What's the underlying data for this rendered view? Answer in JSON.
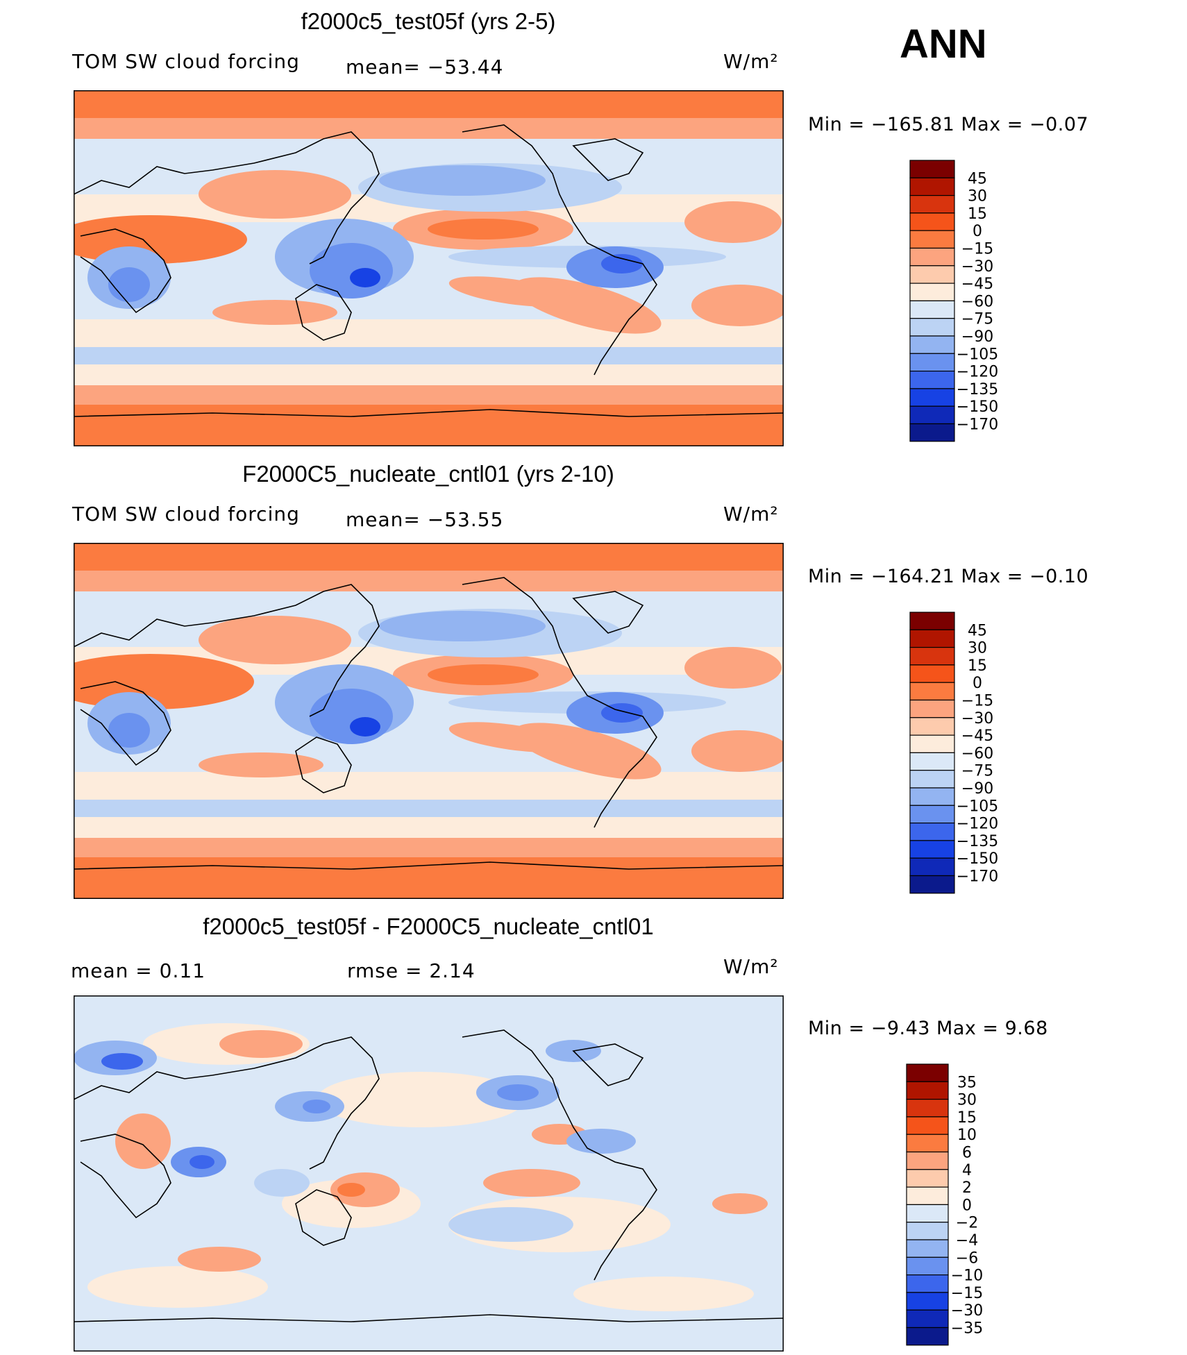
{
  "season": "ANN",
  "chart_data": [
    {
      "type": "heatmap",
      "title": "f2000c5_test05f (yrs 2-5)",
      "variable": "TOM SW cloud forcing",
      "stat_text": "mean=  −53.44",
      "units": "W/m²",
      "min": -165.81,
      "max": -0.07,
      "minmax_text": "Min  =  −165.81  Max  =    −0.07",
      "colorbar_levels": [
        "45",
        "30",
        "15",
        "0",
        "−15",
        "−30",
        "−45",
        "−60",
        "−75",
        "−90",
        "−105",
        "−120",
        "−135",
        "−150",
        "−170"
      ],
      "colorbar_colors": [
        "#7b0000",
        "#b01500",
        "#d8340e",
        "#f5541a",
        "#fb7b40",
        "#fca47f",
        "#fdcbad",
        "#fdecdc",
        "#dbe8f7",
        "#bcd3f4",
        "#93b4f1",
        "#6a92ef",
        "#3c66ec",
        "#1742e4",
        "#0f29b8",
        "#0b1a8c"
      ],
      "land_overlay": "coastlines"
    },
    {
      "type": "heatmap",
      "title": "F2000C5_nucleate_cntl01 (yrs 2-10)",
      "variable": "TOM SW cloud forcing",
      "stat_text": "mean=  −53.55",
      "units": "W/m²",
      "min": -164.21,
      "max": -0.1,
      "minmax_text": "Min  =  −164.21  Max  =    −0.10",
      "colorbar_levels": [
        "45",
        "30",
        "15",
        "0",
        "−15",
        "−30",
        "−45",
        "−60",
        "−75",
        "−90",
        "−105",
        "−120",
        "−135",
        "−150",
        "−170"
      ],
      "colorbar_colors": [
        "#7b0000",
        "#b01500",
        "#d8340e",
        "#f5541a",
        "#fb7b40",
        "#fca47f",
        "#fdcbad",
        "#fdecdc",
        "#dbe8f7",
        "#bcd3f4",
        "#93b4f1",
        "#6a92ef",
        "#3c66ec",
        "#1742e4",
        "#0f29b8",
        "#0b1a8c"
      ],
      "land_overlay": "coastlines"
    },
    {
      "type": "heatmap",
      "title": "f2000c5_test05f - F2000C5_nucleate_cntl01",
      "variable": "",
      "mean_text": "mean  =     0.11",
      "rmse_text": "rmse  =     2.14",
      "units": "W/m²",
      "min": -9.43,
      "max": 9.68,
      "minmax_text": "Min  =    −9.43  Max  =     9.68",
      "colorbar_levels": [
        "35",
        "30",
        "15",
        "10",
        "6",
        "4",
        "2",
        "0",
        "−2",
        "−4",
        "−6",
        "−10",
        "−15",
        "−30",
        "−35"
      ],
      "colorbar_colors": [
        "#7b0000",
        "#b01500",
        "#d8340e",
        "#f5541a",
        "#fb7b40",
        "#fca47f",
        "#fdcbad",
        "#fdecdc",
        "#dbe8f7",
        "#bcd3f4",
        "#93b4f1",
        "#6a92ef",
        "#3c66ec",
        "#1742e4",
        "#0f29b8",
        "#0b1a8c"
      ],
      "land_overlay": "coastlines"
    }
  ]
}
